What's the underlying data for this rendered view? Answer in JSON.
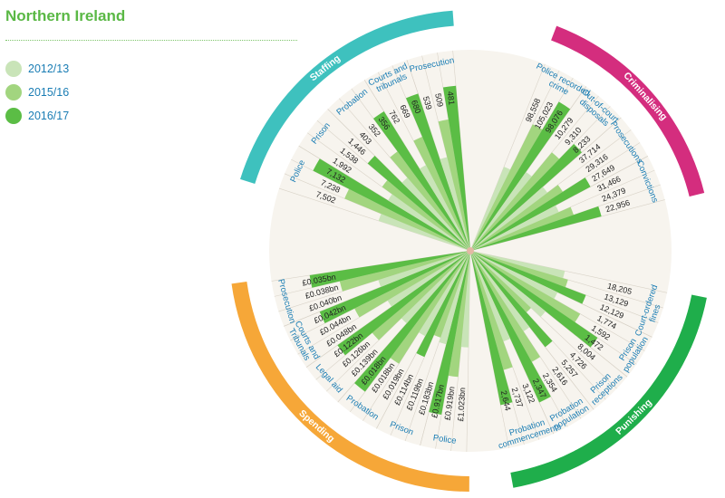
{
  "page": {
    "title": "Northern Ireland"
  },
  "legend": [
    "2012/13",
    "2015/16",
    "2016/17"
  ],
  "colors": {
    "years": [
      "#c9e4b8",
      "#a2d57f",
      "#5bbd45"
    ],
    "label_text": "#1a7db4",
    "value_text": "#222222",
    "spoke": "#d9d3c8",
    "plot_bg": "#f7f4ee"
  },
  "chart_data": {
    "type": "radial-bar",
    "title": "Northern Ireland",
    "years": [
      "2012/13",
      "2015/16",
      "2016/17"
    ],
    "sections": [
      {
        "name": "Spending",
        "color": "#f6a738",
        "groups": [
          {
            "label": [
              "Police"
            ],
            "values": [
              "£1.023bn",
              "£0.919bn",
              "£0.917bn"
            ],
            "numeric": [
              1.023,
              0.919,
              0.917
            ]
          },
          {
            "label": [
              "Prison"
            ],
            "values": [
              "£0.183bn",
              "£0.119bn",
              "£0.114bn"
            ],
            "numeric": [
              0.183,
              0.119,
              0.114
            ]
          },
          {
            "label": [
              "Probation"
            ],
            "values": [
              "£0.019bn",
              "£0.018bn",
              "£0.018bn"
            ],
            "numeric": [
              0.019,
              0.018,
              0.018
            ]
          },
          {
            "label": [
              "Legal aid"
            ],
            "values": [
              "£0.139bn",
              "£0.126bn",
              "£0.122bn"
            ],
            "numeric": [
              0.139,
              0.126,
              0.122
            ]
          },
          {
            "label": [
              "Courts and",
              "Tribunals"
            ],
            "values": [
              "£0.048bn",
              "£0.044bn",
              "£0.042bn"
            ],
            "numeric": [
              0.048,
              0.044,
              0.042
            ]
          },
          {
            "label": [
              "Prosecution"
            ],
            "values": [
              "£0.040bn",
              "£0.038bn",
              "£0.035bn"
            ],
            "numeric": [
              0.04,
              0.038,
              0.035
            ]
          }
        ]
      },
      {
        "name": "Staffing",
        "color": "#3ec1be",
        "groups": [
          {
            "label": [
              "Police"
            ],
            "values": [
              "7,502",
              "7,238",
              "7,132"
            ],
            "numeric": [
              7502,
              7238,
              7132
            ]
          },
          {
            "label": [
              "Prison"
            ],
            "values": [
              "1,992",
              "1,538",
              "1,446"
            ],
            "numeric": [
              1992,
              1538,
              1446
            ]
          },
          {
            "label": [
              "Probation"
            ],
            "values": [
              "403",
              "352",
              "356"
            ],
            "numeric": [
              403,
              352,
              356
            ]
          },
          {
            "label": [
              "Courts and",
              "tribunals"
            ],
            "values": [
              "762",
              "669",
              "680"
            ],
            "numeric": [
              762,
              669,
              680
            ]
          },
          {
            "label": [
              "Prosecution"
            ],
            "values": [
              "539",
              "509",
              "481"
            ],
            "numeric": [
              539,
              509,
              481
            ]
          }
        ]
      },
      {
        "name": "Criminalising",
        "color": "#d42d7e",
        "groups": [
          {
            "label": [
              "Police recorded",
              "crime"
            ],
            "values": [
              "98,558",
              "105,023",
              "98,076"
            ],
            "numeric": [
              98558,
              105023,
              98076
            ]
          },
          {
            "label": [
              "Out-of-court",
              "disposals"
            ],
            "values": [
              "10,279",
              "9,310",
              "8,233"
            ],
            "numeric": [
              10279,
              9310,
              8233
            ]
          },
          {
            "label": [
              "Prosecutions"
            ],
            "values": [
              "37,714",
              "29,316",
              "27,649"
            ],
            "numeric": [
              37714,
              29316,
              27649
            ]
          },
          {
            "label": [
              "Convictions"
            ],
            "values": [
              "31,466",
              "24,379",
              "22,956"
            ],
            "numeric": [
              31466,
              24379,
              22956
            ]
          }
        ]
      },
      {
        "name": "Punishing",
        "color": "#1fae4b",
        "groups": [
          {
            "label": [
              "Court-ordered",
              "fines"
            ],
            "values": [
              "18,205",
              "13,129",
              "12,129"
            ],
            "numeric": [
              18205,
              13129,
              12129
            ]
          },
          {
            "label": [
              "Prison",
              "population"
            ],
            "values": [
              "1,774",
              "1,592",
              "1,472"
            ],
            "numeric": [
              1774,
              1592,
              1472
            ]
          },
          {
            "label": [
              "Prison",
              "receptions"
            ],
            "values": [
              "8,004",
              "4,726",
              "5,257"
            ],
            "numeric": [
              8004,
              4726,
              5257
            ]
          },
          {
            "label": [
              "Probation",
              "population"
            ],
            "values": [
              "2,616",
              "2,354",
              "2,347"
            ],
            "numeric": [
              2616,
              2354,
              2347
            ]
          },
          {
            "label": [
              "Probation",
              "commencements"
            ],
            "values": [
              "3,122",
              "2,737",
              "2,644"
            ],
            "numeric": [
              3122,
              2737,
              2644
            ]
          }
        ]
      }
    ]
  }
}
